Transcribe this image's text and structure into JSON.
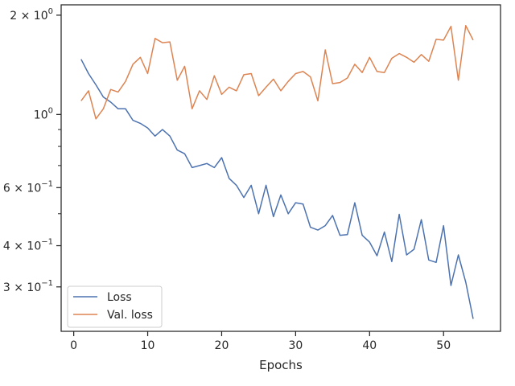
{
  "chart_data": {
    "type": "line",
    "title": "",
    "xlabel": "Epochs",
    "ylabel": "",
    "xlim": [
      -1.7,
      57.7
    ],
    "ylim": [
      0.22,
      2.15
    ],
    "yscale": "log",
    "grid": false,
    "legend_position": "lower-left",
    "x_ticks": [
      0,
      10,
      20,
      30,
      40,
      50
    ],
    "x_tick_labels": [
      "0",
      "10",
      "20",
      "30",
      "40",
      "50"
    ],
    "y_major_ticks": [
      0.3,
      0.4,
      0.6,
      1.0,
      2.0
    ],
    "y_tick_labels": [
      {
        "base": "3",
        "exp": "−1"
      },
      {
        "base": "4",
        "exp": "−1"
      },
      {
        "base": "6",
        "exp": "−1"
      },
      {
        "base": "",
        "exp": "0",
        "plain": "10"
      },
      {
        "base": "2",
        "exp": "0"
      }
    ],
    "y_minor_ticks": [
      0.5,
      0.7,
      0.8,
      0.9
    ],
    "x": [
      1,
      2,
      3,
      4,
      5,
      6,
      7,
      8,
      9,
      10,
      11,
      12,
      13,
      14,
      15,
      16,
      17,
      18,
      19,
      20,
      21,
      22,
      23,
      24,
      25,
      26,
      27,
      28,
      29,
      30,
      31,
      32,
      33,
      34,
      35,
      36,
      37,
      38,
      39,
      40,
      41,
      42,
      43,
      44,
      45,
      46,
      47,
      48,
      49,
      50,
      51,
      52,
      53,
      54
    ],
    "series": [
      {
        "name": "Loss",
        "color": "#4c72b0",
        "values": [
          1.47,
          1.33,
          1.23,
          1.13,
          1.09,
          1.04,
          1.04,
          0.96,
          0.94,
          0.91,
          0.86,
          0.9,
          0.86,
          0.78,
          0.76,
          0.69,
          0.7,
          0.71,
          0.69,
          0.74,
          0.64,
          0.61,
          0.56,
          0.61,
          0.5,
          0.61,
          0.49,
          0.57,
          0.5,
          0.54,
          0.535,
          0.455,
          0.446,
          0.46,
          0.494,
          0.43,
          0.432,
          0.54,
          0.43,
          0.41,
          0.373,
          0.44,
          0.358,
          0.498,
          0.375,
          0.39,
          0.48,
          0.362,
          0.356,
          0.46,
          0.303,
          0.375,
          0.31,
          0.24
        ]
      },
      {
        "name": "Val. loss",
        "color": "#dd8452",
        "values": [
          1.1,
          1.18,
          0.97,
          1.04,
          1.19,
          1.17,
          1.26,
          1.42,
          1.49,
          1.33,
          1.7,
          1.65,
          1.66,
          1.27,
          1.4,
          1.04,
          1.18,
          1.11,
          1.31,
          1.15,
          1.21,
          1.18,
          1.32,
          1.33,
          1.14,
          1.21,
          1.28,
          1.18,
          1.26,
          1.33,
          1.35,
          1.3,
          1.1,
          1.57,
          1.24,
          1.25,
          1.29,
          1.42,
          1.34,
          1.49,
          1.35,
          1.34,
          1.48,
          1.53,
          1.49,
          1.44,
          1.52,
          1.45,
          1.69,
          1.68,
          1.85,
          1.27,
          1.86,
          1.68
        ]
      }
    ]
  }
}
